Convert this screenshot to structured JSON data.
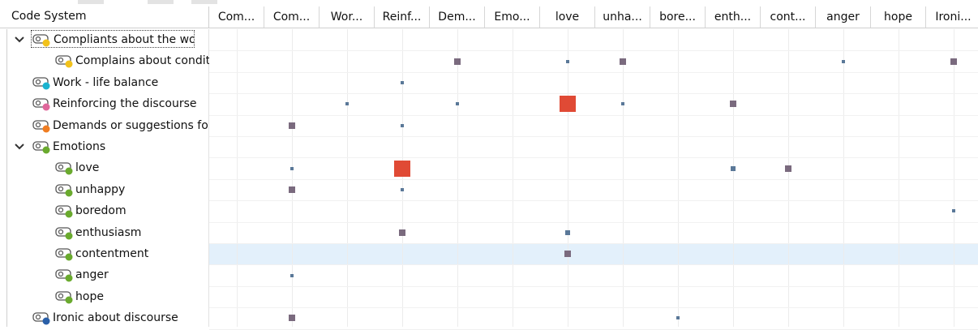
{
  "header": {
    "title": "Code System"
  },
  "columns": [
    "Com...",
    "Com...",
    "Wor...",
    "Reinf...",
    "Dem...",
    "Emo...",
    "love",
    "unha...",
    "bore...",
    "enth...",
    "cont...",
    "anger",
    "hope",
    "Ironi..."
  ],
  "rows": [
    {
      "label": "Compliants about the work",
      "level": 0,
      "expanded": true,
      "color": "#f2c21b",
      "cells": []
    },
    {
      "label": "Complains about conditio",
      "level": 1,
      "color": "#f2c21b",
      "cells": [
        {
          "col": 4,
          "value": 3,
          "color": "#7a6a7e"
        },
        {
          "col": 6,
          "value": 1,
          "color": "#5a7898"
        },
        {
          "col": 7,
          "value": 3,
          "color": "#7a6a7e"
        },
        {
          "col": 11,
          "value": 1,
          "color": "#5a7898"
        },
        {
          "col": 13,
          "value": 3,
          "color": "#7a6a7e"
        }
      ]
    },
    {
      "label": "Work - life balance",
      "level": 0,
      "color": "#1bb3cf",
      "cells": [
        {
          "col": 3,
          "value": 1,
          "color": "#5a7898"
        }
      ]
    },
    {
      "label": "Reinforcing the discourse",
      "level": 0,
      "color": "#e0679b",
      "cells": [
        {
          "col": 2,
          "value": 1,
          "color": "#5a7898"
        },
        {
          "col": 4,
          "value": 1,
          "color": "#5a7898"
        },
        {
          "col": 6,
          "value": 9,
          "color": "#e04a35"
        },
        {
          "col": 7,
          "value": 1,
          "color": "#5a7898"
        },
        {
          "col": 9,
          "value": 3,
          "color": "#7a6a7e"
        }
      ]
    },
    {
      "label": "Demands or suggestions for b",
      "level": 0,
      "color": "#ef7d22",
      "cells": [
        {
          "col": 1,
          "value": 3,
          "color": "#7a6a7e"
        },
        {
          "col": 3,
          "value": 1,
          "color": "#5a7898"
        }
      ]
    },
    {
      "label": "Emotions",
      "level": 0,
      "expanded": true,
      "color": "#6aaa2e",
      "cells": []
    },
    {
      "label": "love",
      "level": 1,
      "color": "#6aaa2e",
      "cells": [
        {
          "col": 1,
          "value": 1,
          "color": "#5a7898"
        },
        {
          "col": 3,
          "value": 9,
          "color": "#e04a35"
        },
        {
          "col": 9,
          "value": 2,
          "color": "#5a7898"
        },
        {
          "col": 10,
          "value": 3,
          "color": "#7a6a7e"
        }
      ]
    },
    {
      "label": "unhappy",
      "level": 1,
      "color": "#6aaa2e",
      "cells": [
        {
          "col": 1,
          "value": 3,
          "color": "#7a6a7e"
        },
        {
          "col": 3,
          "value": 1,
          "color": "#5a7898"
        }
      ]
    },
    {
      "label": "boredom",
      "level": 1,
      "color": "#6aaa2e",
      "cells": [
        {
          "col": 13,
          "value": 1,
          "color": "#5a7898"
        }
      ]
    },
    {
      "label": "enthusiasm",
      "level": 1,
      "color": "#6aaa2e",
      "cells": [
        {
          "col": 3,
          "value": 3,
          "color": "#7a6a7e"
        },
        {
          "col": 6,
          "value": 2,
          "color": "#5a7898"
        }
      ]
    },
    {
      "label": "contentment",
      "level": 1,
      "color": "#6aaa2e",
      "highlighted": true,
      "cells": [
        {
          "col": 6,
          "value": 3,
          "color": "#7a6a7e"
        }
      ]
    },
    {
      "label": "anger",
      "level": 1,
      "color": "#6aaa2e",
      "cells": [
        {
          "col": 1,
          "value": 1,
          "color": "#5a7898"
        }
      ]
    },
    {
      "label": "hope",
      "level": 1,
      "color": "#6aaa2e",
      "cells": []
    },
    {
      "label": "Ironic about discourse",
      "level": 0,
      "color": "#2a5fa8",
      "cells": [
        {
          "col": 1,
          "value": 3,
          "color": "#7a6a7e"
        },
        {
          "col": 8,
          "value": 1,
          "color": "#5a7898"
        }
      ]
    }
  ]
}
